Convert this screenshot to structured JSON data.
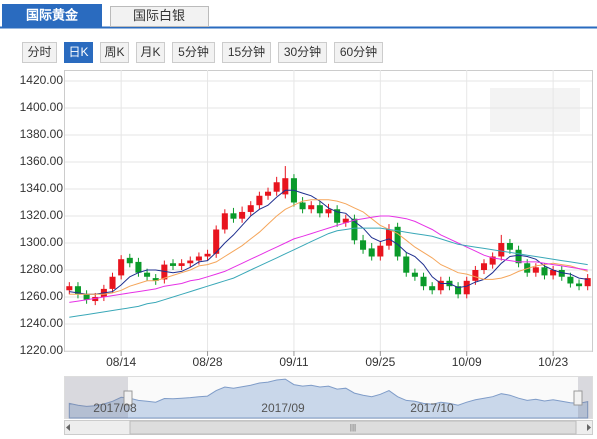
{
  "tabs": [
    "国际黄金",
    "国际白银"
  ],
  "periods": [
    "分时",
    "日K",
    "周K",
    "月K",
    "5分钟",
    "15分钟",
    "30分钟",
    "60分钟"
  ],
  "navigator_labels": [
    "2017/08",
    "2017/09",
    "2017/10"
  ],
  "chart_data": {
    "type": "candlestick",
    "categories": [
      null,
      null,
      null,
      null,
      null,
      null,
      "08/14",
      null,
      null,
      null,
      null,
      null,
      null,
      null,
      null,
      null,
      "08/28",
      null,
      null,
      null,
      null,
      null,
      null,
      null,
      null,
      null,
      "09/11",
      null,
      null,
      null,
      null,
      null,
      null,
      null,
      null,
      null,
      "09/25",
      null,
      null,
      null,
      null,
      null,
      null,
      null,
      null,
      null,
      "10/09",
      null,
      null,
      null,
      null,
      null,
      null,
      null,
      null,
      null,
      "10/23",
      null,
      null,
      null,
      null
    ],
    "open": [
      1265,
      1268,
      1262,
      1257,
      1260,
      1266,
      1276,
      1289,
      1286,
      1278,
      1274,
      1273,
      1285,
      1283,
      1285,
      1287,
      1290,
      1292,
      1310,
      1322,
      1318,
      1323,
      1328,
      1335,
      1338,
      1336,
      1348,
      1330,
      1325,
      1328,
      1322,
      1325,
      1315,
      1318,
      1302,
      1296,
      1290,
      1298,
      1312,
      1290,
      1278,
      1275,
      1268,
      1265,
      1272,
      1268,
      1262,
      1272,
      1280,
      1284,
      1290,
      1300,
      1295,
      1285,
      1278,
      1282,
      1276,
      1280,
      1275,
      1270,
      1268
    ],
    "high": [
      1271,
      1271,
      1265,
      1263,
      1269,
      1278,
      1291,
      1292,
      1289,
      1281,
      1277,
      1287,
      1288,
      1288,
      1290,
      1293,
      1295,
      1313,
      1325,
      1326,
      1327,
      1331,
      1338,
      1341,
      1349,
      1357,
      1351,
      1334,
      1331,
      1331,
      1329,
      1328,
      1321,
      1321,
      1306,
      1300,
      1301,
      1314,
      1315,
      1293,
      1281,
      1278,
      1271,
      1275,
      1275,
      1271,
      1275,
      1283,
      1288,
      1293,
      1306,
      1303,
      1298,
      1288,
      1285,
      1285,
      1283,
      1283,
      1278,
      1273,
      1277
    ],
    "low": [
      1262,
      1259,
      1255,
      1254,
      1257,
      1263,
      1273,
      1282,
      1275,
      1272,
      1269,
      1270,
      1280,
      1280,
      1282,
      1284,
      1287,
      1289,
      1307,
      1315,
      1315,
      1320,
      1325,
      1332,
      1335,
      1333,
      1327,
      1322,
      1322,
      1319,
      1319,
      1312,
      1312,
      1299,
      1292,
      1287,
      1287,
      1295,
      1287,
      1275,
      1272,
      1265,
      1262,
      1262,
      1265,
      1259,
      1259,
      1269,
      1277,
      1281,
      1287,
      1292,
      1282,
      1275,
      1275,
      1273,
      1273,
      1272,
      1267,
      1265,
      1265
    ],
    "close": [
      1268,
      1262,
      1258,
      1260,
      1266,
      1275,
      1288,
      1285,
      1278,
      1275,
      1272,
      1284,
      1283,
      1285,
      1287,
      1290,
      1292,
      1310,
      1322,
      1318,
      1323,
      1328,
      1335,
      1338,
      1345,
      1348,
      1330,
      1325,
      1328,
      1322,
      1325,
      1315,
      1318,
      1302,
      1295,
      1290,
      1298,
      1310,
      1290,
      1278,
      1275,
      1268,
      1265,
      1272,
      1268,
      1262,
      1272,
      1280,
      1285,
      1290,
      1300,
      1295,
      1285,
      1278,
      1282,
      1276,
      1280,
      1275,
      1270,
      1268,
      1274
    ],
    "up_color": "#e8141e",
    "down_color": "#0a9a2a",
    "series": [
      {
        "color": "#1f2f8f",
        "values": [
          1264,
          1263,
          1262,
          1262,
          1263,
          1264,
          1269,
          1275,
          1278,
          1280,
          1280,
          1279,
          1278,
          1279,
          1282,
          1286,
          1287,
          1293,
          1300,
          1306,
          1313,
          1320,
          1325,
          1328,
          1334,
          1339,
          1339,
          1337,
          1335,
          1331,
          1326,
          1323,
          1322,
          1316,
          1311,
          1304,
          1301,
          1303,
          1299,
          1293,
          1290,
          1284,
          1275,
          1270,
          1270,
          1267,
          1268,
          1271,
          1273,
          1278,
          1285,
          1290,
          1291,
          1290,
          1288,
          1283,
          1280,
          1278,
          1277,
          1274,
          1273
        ]
      },
      {
        "color": "#f5a65b",
        "values": [
          1262,
          1262,
          1262,
          1262,
          1262,
          1263,
          1265,
          1268,
          1270,
          1272,
          1272,
          1274,
          1276,
          1278,
          1280,
          1283,
          1284,
          1286,
          1290,
          1294,
          1298,
          1303,
          1308,
          1314,
          1320,
          1325,
          1328,
          1331,
          1332,
          1332,
          1332,
          1331,
          1329,
          1326,
          1323,
          1318,
          1313,
          1310,
          1307,
          1302,
          1297,
          1293,
          1289,
          1284,
          1281,
          1278,
          1277,
          1275,
          1273,
          1273,
          1274,
          1276,
          1279,
          1281,
          1283,
          1284,
          1285,
          1284,
          1283,
          1281,
          1279
        ]
      },
      {
        "color": "#e632e6",
        "values": [
          1256,
          1257,
          1258,
          1259,
          1260,
          1261,
          1262,
          1263,
          1264,
          1265,
          1266,
          1268,
          1269,
          1270,
          1272,
          1273,
          1275,
          1277,
          1279,
          1282,
          1285,
          1288,
          1291,
          1294,
          1297,
          1300,
          1303,
          1305,
          1307,
          1309,
          1311,
          1313,
          1315,
          1317,
          1318,
          1319,
          1320,
          1320,
          1319,
          1318,
          1316,
          1313,
          1310,
          1306,
          1303,
          1300,
          1297,
          1294,
          1291,
          1289,
          1288,
          1287,
          1286,
          1286,
          1286,
          1285,
          1284,
          1283,
          1282,
          1281,
          1280
        ]
      },
      {
        "color": "#3aa8b8",
        "values": [
          1245,
          1246,
          1247,
          1248,
          1249,
          1250,
          1251,
          1252,
          1253,
          1255,
          1256,
          1258,
          1260,
          1262,
          1264,
          1266,
          1268,
          1270,
          1272,
          1274,
          1277,
          1280,
          1283,
          1286,
          1289,
          1292,
          1295,
          1298,
          1301,
          1304,
          1307,
          1309,
          1310,
          1311,
          1311,
          1311,
          1311,
          1310,
          1309,
          1308,
          1307,
          1306,
          1305,
          1303,
          1301,
          1299,
          1298,
          1297,
          1296,
          1295,
          1294,
          1293,
          1292,
          1291,
          1290,
          1289,
          1288,
          1287,
          1286,
          1285,
          1284
        ]
      }
    ],
    "ylim": [
      1220,
      1420
    ],
    "yticks": [
      {
        "value": 1220,
        "label": "1220.00"
      },
      {
        "value": 1240,
        "label": "1240.00"
      },
      {
        "value": 1260,
        "label": "1260.00"
      },
      {
        "value": 1280,
        "label": "1280.00"
      },
      {
        "value": 1300,
        "label": "1300.00"
      },
      {
        "value": 1320,
        "label": "1320.00"
      },
      {
        "value": 1340,
        "label": "1340.00"
      },
      {
        "value": 1360,
        "label": "1360.00"
      },
      {
        "value": 1380,
        "label": "1380.00"
      },
      {
        "value": 1400,
        "label": "1400.00"
      },
      {
        "value": 1420,
        "label": "1420.00"
      }
    ],
    "grid": true
  }
}
